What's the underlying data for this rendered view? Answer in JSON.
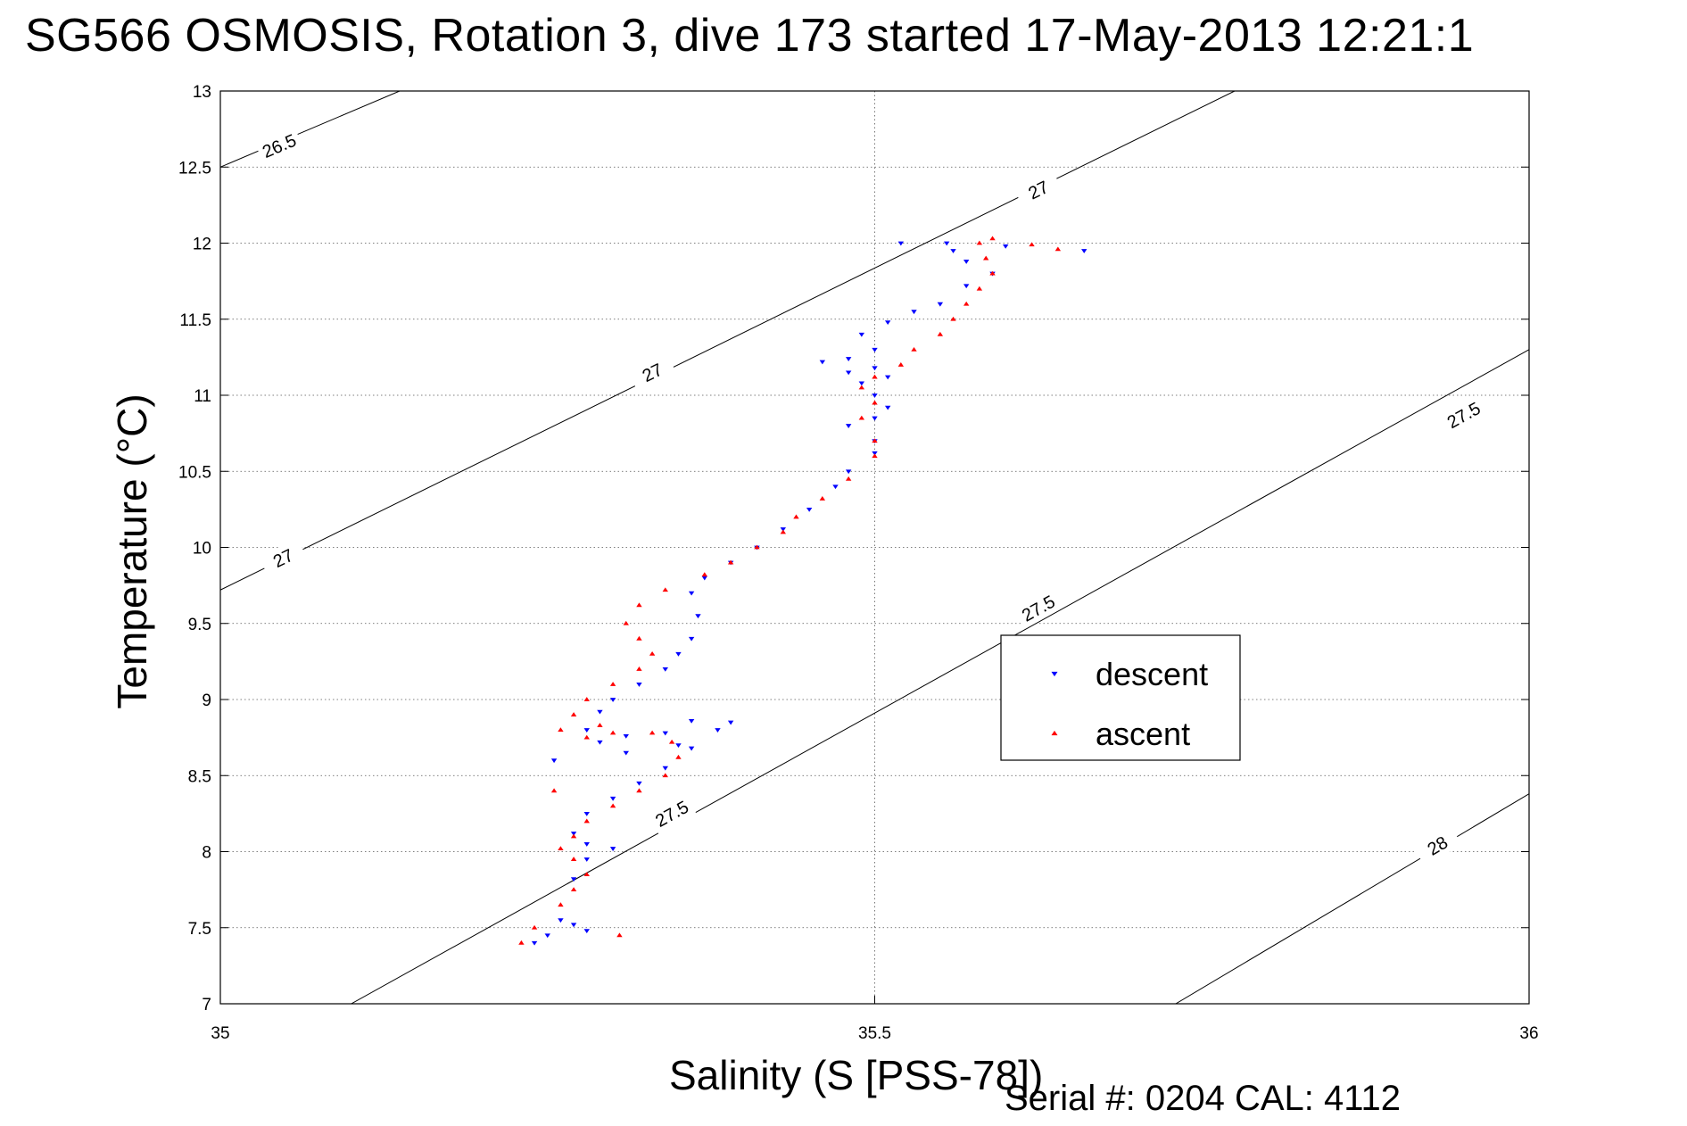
{
  "chart_data": {
    "type": "scatter",
    "title": "SG566 OSMOSIS, Rotation 3, dive 173 started 17-May-2013 12:21:1",
    "xlabel": "Salinity (S [PSS-78])",
    "ylabel": "Temperature (°C)",
    "footer": "Serial #: 0204  CAL: 4112",
    "xlim": [
      35,
      36
    ],
    "ylim": [
      7,
      13
    ],
    "grid": true,
    "legend_position": "right-center",
    "x_ticks": [
      35,
      35.5,
      36
    ],
    "x_tick_labels": [
      "35",
      "35.5",
      "36"
    ],
    "y_ticks": [
      7,
      7.5,
      8,
      8.5,
      9,
      9.5,
      10,
      10.5,
      11,
      11.5,
      12,
      12.5,
      13
    ],
    "y_tick_labels": [
      "7",
      "7.5",
      "8",
      "8.5",
      "9",
      "9.5",
      "10",
      "10.5",
      "11",
      "11.5",
      "12",
      "12.5",
      "13"
    ],
    "density_contours": [
      {
        "label": "26.5",
        "points": [
          [
            35,
            12.5
          ],
          [
            35.137,
            13
          ]
        ],
        "label_positions": [
          [
            35.045,
            12.64
          ]
        ]
      },
      {
        "label": "27",
        "points": [
          [
            35,
            9.72
          ],
          [
            35.775,
            13
          ]
        ],
        "label_positions": [
          [
            35.048,
            9.93
          ],
          [
            35.33,
            11.15
          ],
          [
            35.625,
            12.35
          ]
        ]
      },
      {
        "label": "27.5",
        "points": [
          [
            35.1,
            7
          ],
          [
            36,
            11.3
          ]
        ],
        "label_positions": [
          [
            35.345,
            8.25
          ],
          [
            35.625,
            9.6
          ],
          [
            35.95,
            10.87
          ]
        ]
      },
      {
        "label": "28",
        "points": [
          [
            35.73,
            7
          ],
          [
            36,
            8.38
          ]
        ],
        "label_positions": [
          [
            35.93,
            8.04
          ]
        ]
      }
    ],
    "series": [
      {
        "name": "descent",
        "color": "#0000ff",
        "marker": "triangle-down",
        "points": [
          [
            35.24,
            7.4
          ],
          [
            35.25,
            7.45
          ],
          [
            35.26,
            7.55
          ],
          [
            35.27,
            7.52
          ],
          [
            35.28,
            7.48
          ],
          [
            35.27,
            7.82
          ],
          [
            35.28,
            7.95
          ],
          [
            35.3,
            8.02
          ],
          [
            35.28,
            8.05
          ],
          [
            35.27,
            8.12
          ],
          [
            35.28,
            8.25
          ],
          [
            35.3,
            8.35
          ],
          [
            35.32,
            8.45
          ],
          [
            35.34,
            8.55
          ],
          [
            35.36,
            8.68
          ],
          [
            35.38,
            8.8
          ],
          [
            35.39,
            8.85
          ],
          [
            35.36,
            8.86
          ],
          [
            35.34,
            8.78
          ],
          [
            35.31,
            8.76
          ],
          [
            35.29,
            8.72
          ],
          [
            35.28,
            8.8
          ],
          [
            35.29,
            8.92
          ],
          [
            35.3,
            9.0
          ],
          [
            35.32,
            9.1
          ],
          [
            35.34,
            9.2
          ],
          [
            35.35,
            9.3
          ],
          [
            35.36,
            9.4
          ],
          [
            35.365,
            9.55
          ],
          [
            35.36,
            9.7
          ],
          [
            35.37,
            9.8
          ],
          [
            35.39,
            9.9
          ],
          [
            35.41,
            10.0
          ],
          [
            35.43,
            10.12
          ],
          [
            35.45,
            10.25
          ],
          [
            35.47,
            10.4
          ],
          [
            35.48,
            10.5
          ],
          [
            35.5,
            10.62
          ],
          [
            35.5,
            10.7
          ],
          [
            35.48,
            10.8
          ],
          [
            35.5,
            10.85
          ],
          [
            35.51,
            10.92
          ],
          [
            35.5,
            11.0
          ],
          [
            35.49,
            11.08
          ],
          [
            35.48,
            11.15
          ],
          [
            35.46,
            11.22
          ],
          [
            35.48,
            11.24
          ],
          [
            35.5,
            11.18
          ],
          [
            35.51,
            11.12
          ],
          [
            35.5,
            11.3
          ],
          [
            35.49,
            11.4
          ],
          [
            35.51,
            11.48
          ],
          [
            35.53,
            11.55
          ],
          [
            35.55,
            11.6
          ],
          [
            35.57,
            11.72
          ],
          [
            35.59,
            11.8
          ],
          [
            35.57,
            11.88
          ],
          [
            35.56,
            11.95
          ],
          [
            35.555,
            12.0
          ],
          [
            35.52,
            12.0
          ],
          [
            35.6,
            11.98
          ],
          [
            35.66,
            11.95
          ],
          [
            35.255,
            8.6
          ],
          [
            35.31,
            8.65
          ],
          [
            35.35,
            8.7
          ]
        ]
      },
      {
        "name": "ascent",
        "color": "#ff0000",
        "marker": "triangle-up",
        "points": [
          [
            35.23,
            7.4
          ],
          [
            35.24,
            7.5
          ],
          [
            35.26,
            7.65
          ],
          [
            35.27,
            7.75
          ],
          [
            35.28,
            7.85
          ],
          [
            35.27,
            7.95
          ],
          [
            35.26,
            8.02
          ],
          [
            35.27,
            8.1
          ],
          [
            35.28,
            8.2
          ],
          [
            35.3,
            8.3
          ],
          [
            35.32,
            8.4
          ],
          [
            35.34,
            8.5
          ],
          [
            35.35,
            8.62
          ],
          [
            35.345,
            8.72
          ],
          [
            35.33,
            8.78
          ],
          [
            35.3,
            8.78
          ],
          [
            35.28,
            8.75
          ],
          [
            35.26,
            8.8
          ],
          [
            35.27,
            8.9
          ],
          [
            35.28,
            9.0
          ],
          [
            35.3,
            9.1
          ],
          [
            35.32,
            9.2
          ],
          [
            35.33,
            9.3
          ],
          [
            35.32,
            9.4
          ],
          [
            35.31,
            9.5
          ],
          [
            35.32,
            9.62
          ],
          [
            35.34,
            9.72
          ],
          [
            35.37,
            9.82
          ],
          [
            35.39,
            9.9
          ],
          [
            35.41,
            10.0
          ],
          [
            35.43,
            10.1
          ],
          [
            35.44,
            10.2
          ],
          [
            35.46,
            10.32
          ],
          [
            35.48,
            10.45
          ],
          [
            35.5,
            10.6
          ],
          [
            35.5,
            10.7
          ],
          [
            35.49,
            10.85
          ],
          [
            35.5,
            10.95
          ],
          [
            35.49,
            11.05
          ],
          [
            35.5,
            11.12
          ],
          [
            35.52,
            11.2
          ],
          [
            35.53,
            11.3
          ],
          [
            35.55,
            11.4
          ],
          [
            35.56,
            11.5
          ],
          [
            35.57,
            11.6
          ],
          [
            35.58,
            11.7
          ],
          [
            35.59,
            11.8
          ],
          [
            35.585,
            11.9
          ],
          [
            35.58,
            12.0
          ],
          [
            35.59,
            12.03
          ],
          [
            35.62,
            11.99
          ],
          [
            35.64,
            11.96
          ],
          [
            35.305,
            7.45
          ],
          [
            35.255,
            8.4
          ],
          [
            35.29,
            8.83
          ]
        ]
      }
    ]
  },
  "legend": {
    "entries": [
      {
        "label": "descent",
        "color": "#0000ff",
        "marker": "triangle-down"
      },
      {
        "label": "ascent",
        "color": "#ff0000",
        "marker": "triangle-up"
      }
    ]
  }
}
